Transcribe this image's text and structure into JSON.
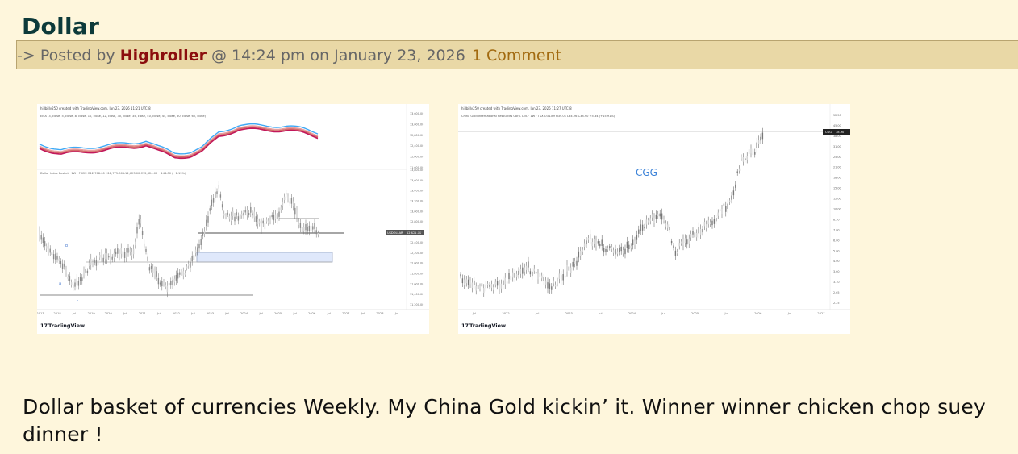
{
  "post": {
    "title": "Dollar",
    "meta": {
      "prefix": "-> Posted by ",
      "author": "Highroller",
      "time_text": " @ 14:24 pm on January 23, 2026",
      "comments": "1 Comment"
    },
    "body": "Dollar basket of currencies Weekly.  My China Gold kickin’ it. Winner winner chicken chop suey dinner !"
  },
  "images": [
    {
      "header": "hillbilly250 created with TradingView.com, Jan 23, 2026 11:21 UTC-8",
      "ema_legend": "EMA (3, close, 5, close, 8, close, 10, close, 12, close, 30, close, 35, close, 40, close, 45, close, 50, close, 60, close)",
      "series_label": "Dollar Index Basket · 1W · FXCM  O12,768.00 H12,775.50 L12,623.00 C12,624.00 −144.00 (−1.13%)",
      "symbol_tag": "USDOLLAR",
      "price_tag": "12,624.00",
      "x_ticks": [
        "2017",
        "2018",
        "Jul",
        "2019",
        "2020",
        "Jul",
        "2021",
        "Jul",
        "2022",
        "Jul",
        "2023",
        "Jul",
        "2024",
        "Jul",
        "2025",
        "Jul",
        "2026",
        "Jul",
        "2027",
        "Jul",
        "2028",
        "Jul"
      ],
      "y_ticks_top": [
        "13,600.00",
        "13,000.00",
        "12,800.00",
        "12,400.00",
        "12,000.00",
        "11,600.00"
      ],
      "y_ticks_bottom": [
        "13,800.00",
        "13,600.00",
        "13,400.00",
        "13,200.00",
        "13,000.00",
        "12,800.00",
        "12,600.00",
        "12,400.00",
        "12,200.00",
        "12,000.00",
        "11,800.00",
        "11,600.00",
        "11,400.00",
        "11,200.00"
      ],
      "brand": "TradingView",
      "colors": {
        "ema_fast": "#3fa9f5",
        "ema_slow": "#c2185b",
        "candle": "#6e6e6e"
      }
    },
    {
      "header": "hillbilly250 created with TradingView.com, Jan 23, 2026 11:27 UTC-8",
      "series_label": "China Gold International Resources Corp. Ltd. · 1W · TSX  O34.89 H39.01 L34.26 C38.90 +5.34 (+15.91%)",
      "annotation": "CGG",
      "symbol_tag": "CGG",
      "price_tag": "38.90",
      "x_ticks": [
        "Jul",
        "2022",
        "Jul",
        "2023",
        "Jul",
        "2024",
        "Jul",
        "2025",
        "Jul",
        "2026",
        "Jul",
        "2027"
      ],
      "y_ticks": [
        "52.50",
        "45.00",
        "38.00",
        "31.00",
        "25.00",
        "21.00",
        "18.00",
        "15.00",
        "12.00",
        "10.00",
        "8.50",
        "7.00",
        "6.00",
        "5.00",
        "4.00",
        "3.60",
        "3.10",
        "2.65",
        "2.25"
      ],
      "brand": "TradingView",
      "colors": {
        "annotation": "#3b82d8",
        "candle": "#555555"
      }
    }
  ]
}
